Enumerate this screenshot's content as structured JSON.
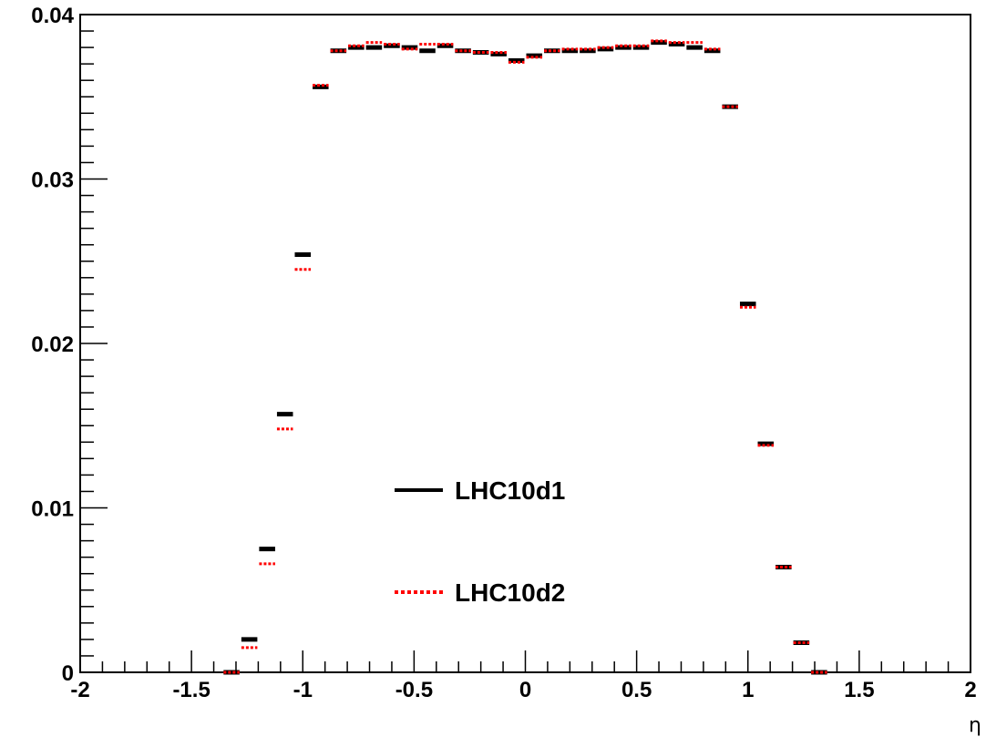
{
  "chart_data": {
    "type": "scatter",
    "title": "",
    "xlabel": "η",
    "ylabel": "",
    "xlim": [
      -2,
      2
    ],
    "ylim": [
      0,
      0.04
    ],
    "grid": false,
    "legend_position": "center",
    "x_ticks": [
      -2,
      -1.5,
      -1,
      -0.5,
      0,
      0.5,
      1,
      1.5,
      2
    ],
    "x_tick_labels": [
      "-2",
      "-1.5",
      "-1",
      "-0.5",
      "0",
      "0.5",
      "1",
      "1.5",
      "2"
    ],
    "y_ticks": [
      0,
      0.01,
      0.02,
      0.03,
      0.04
    ],
    "y_tick_labels": [
      "0",
      "0.01",
      "0.02",
      "0.03",
      "0.04"
    ],
    "bin_width": 0.08,
    "x": [
      -1.32,
      -1.24,
      -1.16,
      -1.08,
      -1.0,
      -0.92,
      -0.84,
      -0.76,
      -0.68,
      -0.6,
      -0.52,
      -0.44,
      -0.36,
      -0.28,
      -0.2,
      -0.12,
      -0.04,
      0.04,
      0.12,
      0.2,
      0.28,
      0.36,
      0.44,
      0.52,
      0.6,
      0.68,
      0.76,
      0.84,
      0.92,
      1.0,
      1.08,
      1.16,
      1.24,
      1.32
    ],
    "series": [
      {
        "name": "LHC10d1",
        "color": "#000000",
        "line_style": "solid",
        "values": [
          0.0,
          0.002,
          0.0075,
          0.0157,
          0.0254,
          0.0356,
          0.0378,
          0.038,
          0.038,
          0.0381,
          0.038,
          0.0378,
          0.0381,
          0.0378,
          0.0377,
          0.0376,
          0.0372,
          0.0375,
          0.0378,
          0.0378,
          0.0378,
          0.0379,
          0.038,
          0.038,
          0.0383,
          0.0382,
          0.038,
          0.0378,
          0.0344,
          0.0224,
          0.0139,
          0.0064,
          0.0018,
          0.0
        ]
      },
      {
        "name": "LHC10d2",
        "color": "#ff0000",
        "line_style": "dotted",
        "values": [
          0.0,
          0.0015,
          0.0066,
          0.0148,
          0.0245,
          0.0357,
          0.0378,
          0.0381,
          0.0383,
          0.0382,
          0.0379,
          0.0382,
          0.0382,
          0.0378,
          0.0377,
          0.0377,
          0.0371,
          0.0374,
          0.0378,
          0.0379,
          0.0379,
          0.038,
          0.0381,
          0.0381,
          0.0384,
          0.0383,
          0.0383,
          0.0379,
          0.0344,
          0.0222,
          0.0138,
          0.0064,
          0.0018,
          0.0
        ]
      }
    ]
  },
  "legend": {
    "entry_1": "LHC10d1",
    "entry_2": "LHC10d2"
  }
}
